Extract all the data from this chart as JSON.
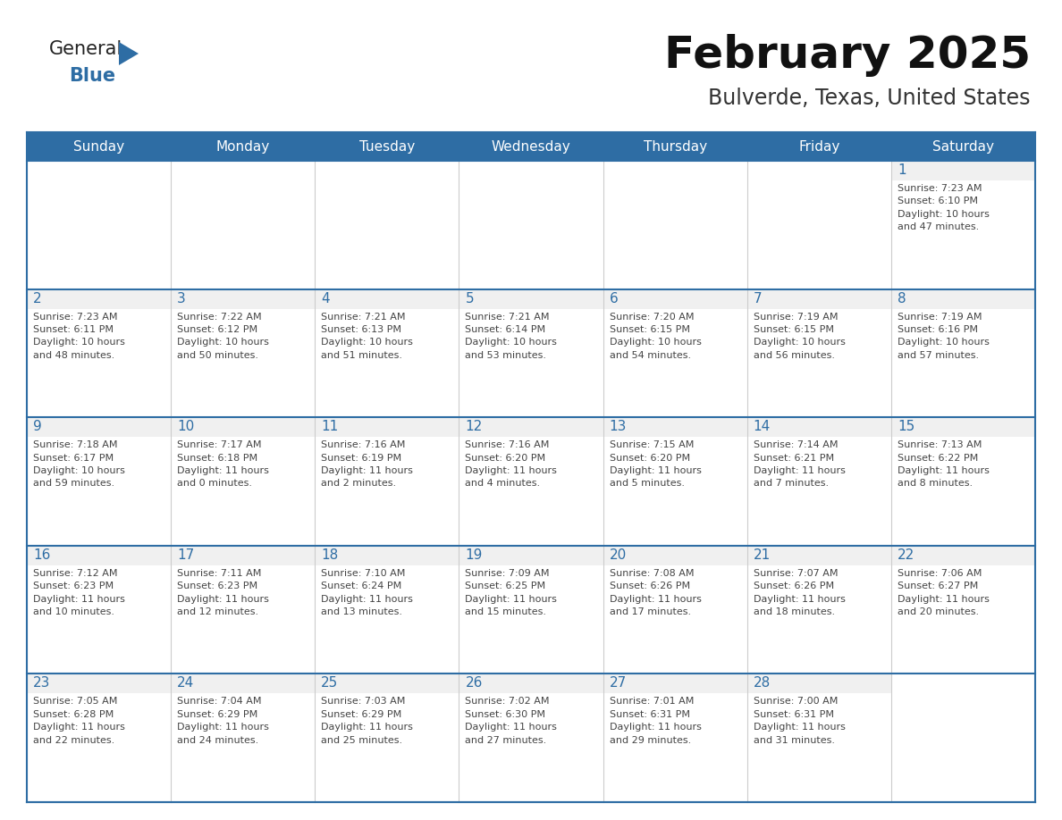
{
  "title": "February 2025",
  "subtitle": "Bulverde, Texas, United States",
  "header_color": "#2e6da4",
  "header_text_color": "#ffffff",
  "cell_bg_color": "#ffffff",
  "cell_top_bg_color": "#f0f0f0",
  "border_color": "#2e6da4",
  "day_number_color": "#2e6da4",
  "cell_text_color": "#444444",
  "title_color": "#111111",
  "subtitle_color": "#333333",
  "logo_general_color": "#222222",
  "logo_blue_color": "#2e6da4",
  "logo_triangle_color": "#2e6da4",
  "days_of_week": [
    "Sunday",
    "Monday",
    "Tuesday",
    "Wednesday",
    "Thursday",
    "Friday",
    "Saturday"
  ],
  "weeks": [
    [
      {
        "day": null,
        "data": ""
      },
      {
        "day": null,
        "data": ""
      },
      {
        "day": null,
        "data": ""
      },
      {
        "day": null,
        "data": ""
      },
      {
        "day": null,
        "data": ""
      },
      {
        "day": null,
        "data": ""
      },
      {
        "day": 1,
        "data": "Sunrise: 7:23 AM\nSunset: 6:10 PM\nDaylight: 10 hours\nand 47 minutes."
      }
    ],
    [
      {
        "day": 2,
        "data": "Sunrise: 7:23 AM\nSunset: 6:11 PM\nDaylight: 10 hours\nand 48 minutes."
      },
      {
        "day": 3,
        "data": "Sunrise: 7:22 AM\nSunset: 6:12 PM\nDaylight: 10 hours\nand 50 minutes."
      },
      {
        "day": 4,
        "data": "Sunrise: 7:21 AM\nSunset: 6:13 PM\nDaylight: 10 hours\nand 51 minutes."
      },
      {
        "day": 5,
        "data": "Sunrise: 7:21 AM\nSunset: 6:14 PM\nDaylight: 10 hours\nand 53 minutes."
      },
      {
        "day": 6,
        "data": "Sunrise: 7:20 AM\nSunset: 6:15 PM\nDaylight: 10 hours\nand 54 minutes."
      },
      {
        "day": 7,
        "data": "Sunrise: 7:19 AM\nSunset: 6:15 PM\nDaylight: 10 hours\nand 56 minutes."
      },
      {
        "day": 8,
        "data": "Sunrise: 7:19 AM\nSunset: 6:16 PM\nDaylight: 10 hours\nand 57 minutes."
      }
    ],
    [
      {
        "day": 9,
        "data": "Sunrise: 7:18 AM\nSunset: 6:17 PM\nDaylight: 10 hours\nand 59 minutes."
      },
      {
        "day": 10,
        "data": "Sunrise: 7:17 AM\nSunset: 6:18 PM\nDaylight: 11 hours\nand 0 minutes."
      },
      {
        "day": 11,
        "data": "Sunrise: 7:16 AM\nSunset: 6:19 PM\nDaylight: 11 hours\nand 2 minutes."
      },
      {
        "day": 12,
        "data": "Sunrise: 7:16 AM\nSunset: 6:20 PM\nDaylight: 11 hours\nand 4 minutes."
      },
      {
        "day": 13,
        "data": "Sunrise: 7:15 AM\nSunset: 6:20 PM\nDaylight: 11 hours\nand 5 minutes."
      },
      {
        "day": 14,
        "data": "Sunrise: 7:14 AM\nSunset: 6:21 PM\nDaylight: 11 hours\nand 7 minutes."
      },
      {
        "day": 15,
        "data": "Sunrise: 7:13 AM\nSunset: 6:22 PM\nDaylight: 11 hours\nand 8 minutes."
      }
    ],
    [
      {
        "day": 16,
        "data": "Sunrise: 7:12 AM\nSunset: 6:23 PM\nDaylight: 11 hours\nand 10 minutes."
      },
      {
        "day": 17,
        "data": "Sunrise: 7:11 AM\nSunset: 6:23 PM\nDaylight: 11 hours\nand 12 minutes."
      },
      {
        "day": 18,
        "data": "Sunrise: 7:10 AM\nSunset: 6:24 PM\nDaylight: 11 hours\nand 13 minutes."
      },
      {
        "day": 19,
        "data": "Sunrise: 7:09 AM\nSunset: 6:25 PM\nDaylight: 11 hours\nand 15 minutes."
      },
      {
        "day": 20,
        "data": "Sunrise: 7:08 AM\nSunset: 6:26 PM\nDaylight: 11 hours\nand 17 minutes."
      },
      {
        "day": 21,
        "data": "Sunrise: 7:07 AM\nSunset: 6:26 PM\nDaylight: 11 hours\nand 18 minutes."
      },
      {
        "day": 22,
        "data": "Sunrise: 7:06 AM\nSunset: 6:27 PM\nDaylight: 11 hours\nand 20 minutes."
      }
    ],
    [
      {
        "day": 23,
        "data": "Sunrise: 7:05 AM\nSunset: 6:28 PM\nDaylight: 11 hours\nand 22 minutes."
      },
      {
        "day": 24,
        "data": "Sunrise: 7:04 AM\nSunset: 6:29 PM\nDaylight: 11 hours\nand 24 minutes."
      },
      {
        "day": 25,
        "data": "Sunrise: 7:03 AM\nSunset: 6:29 PM\nDaylight: 11 hours\nand 25 minutes."
      },
      {
        "day": 26,
        "data": "Sunrise: 7:02 AM\nSunset: 6:30 PM\nDaylight: 11 hours\nand 27 minutes."
      },
      {
        "day": 27,
        "data": "Sunrise: 7:01 AM\nSunset: 6:31 PM\nDaylight: 11 hours\nand 29 minutes."
      },
      {
        "day": 28,
        "data": "Sunrise: 7:00 AM\nSunset: 6:31 PM\nDaylight: 11 hours\nand 31 minutes."
      },
      {
        "day": null,
        "data": ""
      }
    ]
  ]
}
